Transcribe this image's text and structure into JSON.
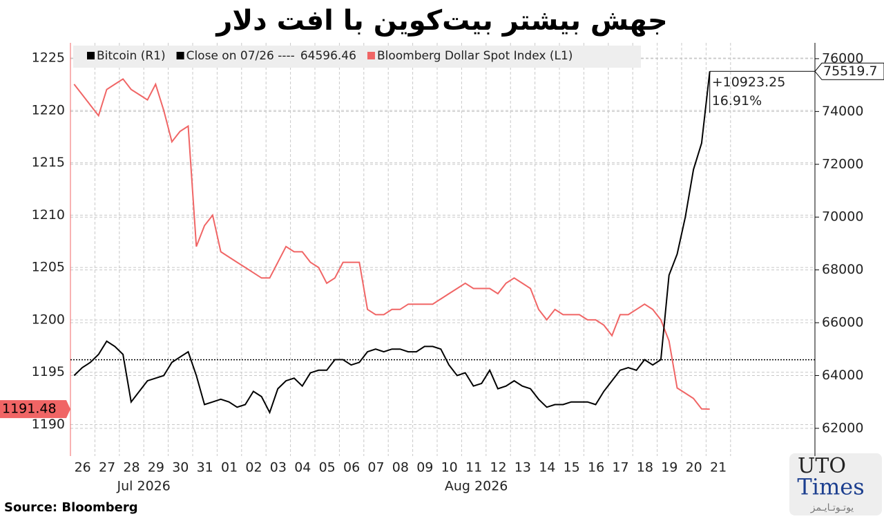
{
  "chart_data": {
    "type": "line",
    "title": "جهش بیشتر بیت‌کوین با افت دلار",
    "categories": [
      "26",
      null,
      null,
      "27",
      null,
      null,
      "28",
      null,
      null,
      "29",
      null,
      null,
      "30",
      null,
      null,
      "31",
      null,
      null,
      "01",
      null,
      null,
      "02",
      null,
      null,
      "03",
      null,
      null,
      "04",
      null,
      null,
      "05",
      null,
      null,
      "06",
      null,
      null,
      "07",
      null,
      null,
      "08",
      null,
      null,
      "09",
      null,
      null,
      "10",
      null,
      null,
      "11",
      null,
      null,
      "12",
      null,
      null,
      "13",
      null,
      null,
      "14",
      null,
      null,
      "15",
      null,
      null,
      "16",
      null,
      null,
      "17",
      null,
      null,
      "18",
      null,
      null,
      "19",
      null,
      null,
      "20",
      null,
      null,
      "21"
    ],
    "months": [
      "Jul 2026",
      "Aug 2026"
    ],
    "series": [
      {
        "name": "Bloomberg Dollar Spot Index (L1)",
        "color": "#f06565",
        "axis": "y",
        "values": [
          1222.5,
          1221.5,
          1220.5,
          1219.5,
          1222,
          1222.5,
          1223,
          1222,
          1221.5,
          1221,
          1222.5,
          1220,
          1217,
          1218,
          1218.5,
          1207,
          1209,
          1210,
          1206.5,
          1206,
          1205.5,
          1205,
          1204.5,
          1204,
          1204,
          1205.5,
          1207,
          1206.5,
          1206.5,
          1205.5,
          1205,
          1203.5,
          1204,
          1205.5,
          1205.5,
          1205.5,
          1201,
          1200.5,
          1200.5,
          1201,
          1201,
          1201.5,
          1201.5,
          1201.5,
          1201.5,
          1202,
          1202.5,
          1203,
          1203.5,
          1203,
          1203,
          1203,
          1202.5,
          1203.5,
          1204,
          1203.5,
          1203,
          1201,
          1200,
          1201,
          1200.5,
          1200.5,
          1200.5,
          1200,
          1200,
          1199.5,
          1198.5,
          1200.5,
          1200.5,
          1201,
          1201.5,
          1201,
          1200,
          1198,
          1193.5,
          1193,
          1192.5,
          1191.5,
          1191.48
        ]
      },
      {
        "name": "Bitcoin (R1)",
        "color": "#000000",
        "axis": "y2",
        "values": [
          64000,
          64300,
          64500,
          64800,
          65300,
          65100,
          64800,
          63000,
          63400,
          63800,
          63900,
          64000,
          64500,
          64700,
          64900,
          64000,
          62900,
          63000,
          63100,
          63000,
          62800,
          62900,
          63400,
          63200,
          62600,
          63500,
          63800,
          63900,
          63600,
          64100,
          64200,
          64200,
          64600,
          64600,
          64400,
          64500,
          64900,
          65000,
          64900,
          65000,
          65000,
          64900,
          64900,
          65100,
          65100,
          65000,
          64400,
          64000,
          64100,
          63600,
          63700,
          64200,
          63500,
          63600,
          63800,
          63600,
          63500,
          63100,
          62800,
          62900,
          62900,
          63000,
          63000,
          63000,
          62900,
          63400,
          63800,
          64200,
          64300,
          64200,
          64600,
          64400,
          64600,
          67800,
          68600,
          70000,
          71800,
          72800,
          75519.7
        ]
      }
    ],
    "close_label": "Close on 07/26 ----",
    "close_value": 64596.46,
    "annotations": [
      "+10923.25",
      "16.91%"
    ],
    "ylim": [
      1187,
      1226.45
    ],
    "yticks": [
      1190,
      1195,
      1200,
      1205,
      1210,
      1215,
      1220,
      1225
    ],
    "y2lim": [
      60950,
      76600
    ],
    "y2ticks": [
      62000,
      64000,
      66000,
      68000,
      70000,
      72000,
      74000,
      76000
    ],
    "grid": true,
    "source": "Source: Bloomberg",
    "logo": {
      "line1": "UTO",
      "line2": "Times",
      "line3": "یوتـوتـایـمز"
    }
  }
}
